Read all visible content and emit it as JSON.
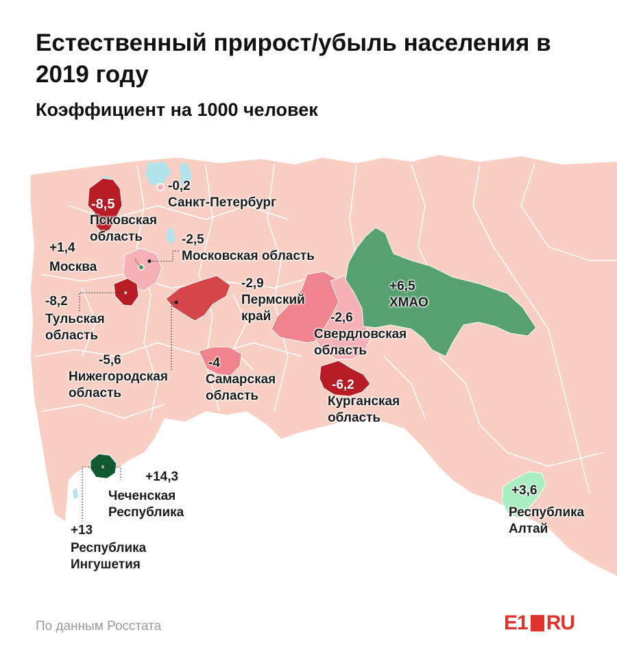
{
  "title": "Естественный прирост/убыль населения в 2019 году",
  "subtitle": "Коэффициент на 1000 человек",
  "source": "По данным Росстата",
  "logo": {
    "part1": "E1",
    "part2": "RU"
  },
  "colors": {
    "background_land": "#f8cfc2",
    "border": "#ffffff",
    "water": "#b3e4ec",
    "deep_red": "#b81c25",
    "red": "#d5454a",
    "light_red": "#f0848c",
    "pink": "#f7b0b6",
    "green": "#56a16f",
    "dark_green": "#0f5a31",
    "light_green": "#a8eec0"
  },
  "regions": [
    {
      "name": "Санкт-Петербург",
      "value": "-0,2"
    },
    {
      "name": "Псковская область",
      "value": "-8,5"
    },
    {
      "name": "Московская область",
      "value": "-2,5"
    },
    {
      "name": "Москва",
      "value": "+1,4"
    },
    {
      "name": "Тульская область",
      "value": "-8,2"
    },
    {
      "name": "Пермский край",
      "value": "-2,9"
    },
    {
      "name": "ХМАО",
      "value": "+6,5"
    },
    {
      "name": "Свердловская область",
      "value": "-2,6"
    },
    {
      "name": "Нижегородская область",
      "value": "-5,6"
    },
    {
      "name": "Самарская область",
      "value": "-4"
    },
    {
      "name": "Курганская область",
      "value": "-6,2"
    },
    {
      "name": "Чеченская Республика",
      "value": "+14,3"
    },
    {
      "name": "Республика Ингушетия",
      "value": "+13"
    },
    {
      "name": "Республика Алтай",
      "value": "+3,6"
    }
  ],
  "labels": {
    "spb": {
      "value": "-0,2",
      "name": "Санкт-Петербург"
    },
    "pskov": {
      "value": "-8,5",
      "name1": "Псковская",
      "name2": "область"
    },
    "mo": {
      "value": "-2,5",
      "name": "Московская область"
    },
    "moscow": {
      "value": "+1,4",
      "name": "Москва"
    },
    "tula": {
      "value": "-8,2",
      "name1": "Тульская",
      "name2": "область"
    },
    "perm": {
      "value": "-2,9",
      "name1": "Пермский",
      "name2": "край"
    },
    "hmao": {
      "value": "+6,5",
      "name": "ХМАО"
    },
    "sverd": {
      "value": "-2,6",
      "name1": "Свердловская",
      "name2": "область"
    },
    "nizh": {
      "value": "-5,6",
      "name1": "Нижегородская",
      "name2": "область"
    },
    "samara": {
      "value": "-4",
      "name1": "Самарская",
      "name2": "область"
    },
    "kurgan": {
      "value": "-6,2",
      "name1": "Курганская",
      "name2": "область"
    },
    "chech": {
      "value": "+14,3",
      "name1": "Чеченская",
      "name2": "Республика"
    },
    "ingush": {
      "value": "+13",
      "name1": "Республика",
      "name2": "Ингушетия"
    },
    "altai": {
      "value": "+3,6",
      "name1": "Республика",
      "name2": "Алтай"
    }
  }
}
